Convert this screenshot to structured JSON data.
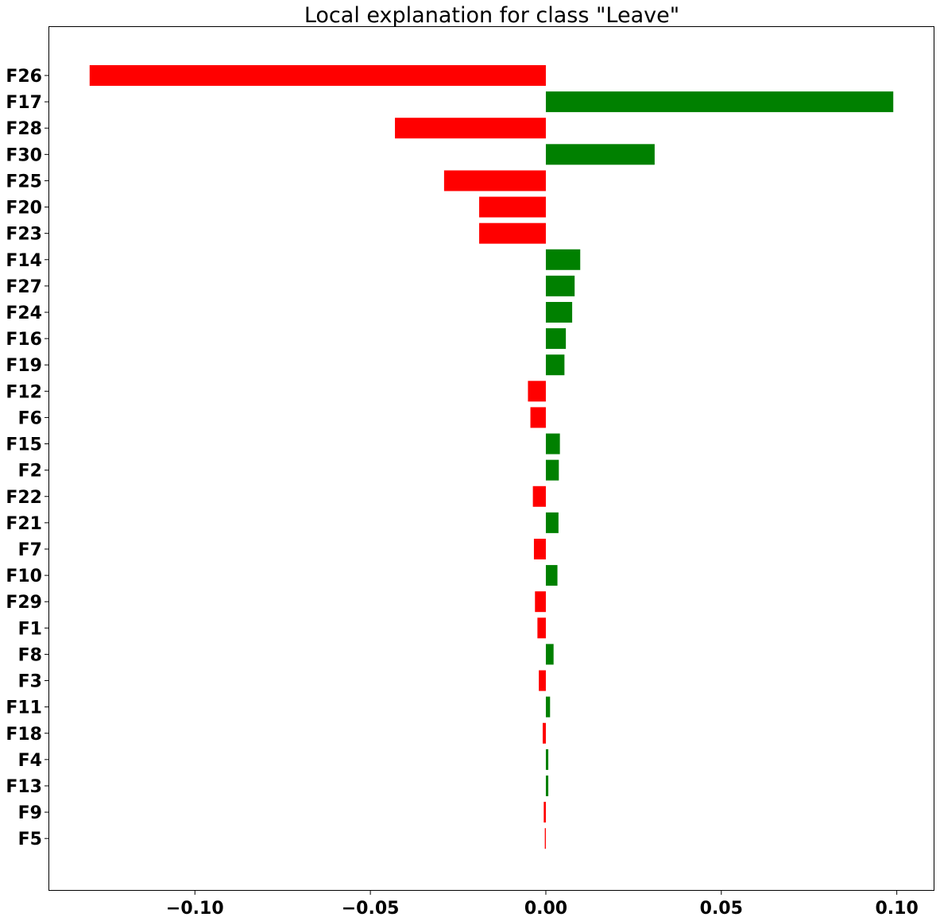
{
  "chart_data": {
    "type": "bar",
    "orientation": "horizontal",
    "title": "Local explanation for class \"Leave\"",
    "xlabel": "",
    "ylabel": "",
    "xlim": [
      -0.1415,
      0.1105
    ],
    "grid": false,
    "legend": "none",
    "colors": {
      "positive": "#008000",
      "negative": "#ff0000"
    },
    "categories": [
      "F26",
      "F17",
      "F28",
      "F30",
      "F25",
      "F20",
      "F23",
      "F14",
      "F27",
      "F24",
      "F16",
      "F19",
      "F12",
      "F6",
      "F15",
      "F2",
      "F22",
      "F21",
      "F7",
      "F10",
      "F29",
      "F1",
      "F8",
      "F3",
      "F11",
      "F18",
      "F4",
      "F13",
      "F9",
      "F5"
    ],
    "values": [
      -0.13,
      0.099,
      -0.043,
      0.031,
      -0.029,
      -0.019,
      -0.019,
      0.0098,
      0.0082,
      0.0075,
      0.0057,
      0.0053,
      -0.0051,
      -0.0044,
      0.004,
      0.0037,
      -0.0037,
      0.0036,
      -0.0034,
      0.0033,
      -0.0031,
      -0.0024,
      0.0022,
      -0.002,
      0.0012,
      -0.0009,
      0.0007,
      0.0007,
      -0.0006,
      -0.0003
    ],
    "x_ticks": [
      -0.1,
      -0.05,
      0.0,
      0.05,
      0.1
    ],
    "x_tick_labels": [
      "−0.10",
      "−0.05",
      "0.00",
      "0.05",
      "0.10"
    ]
  }
}
